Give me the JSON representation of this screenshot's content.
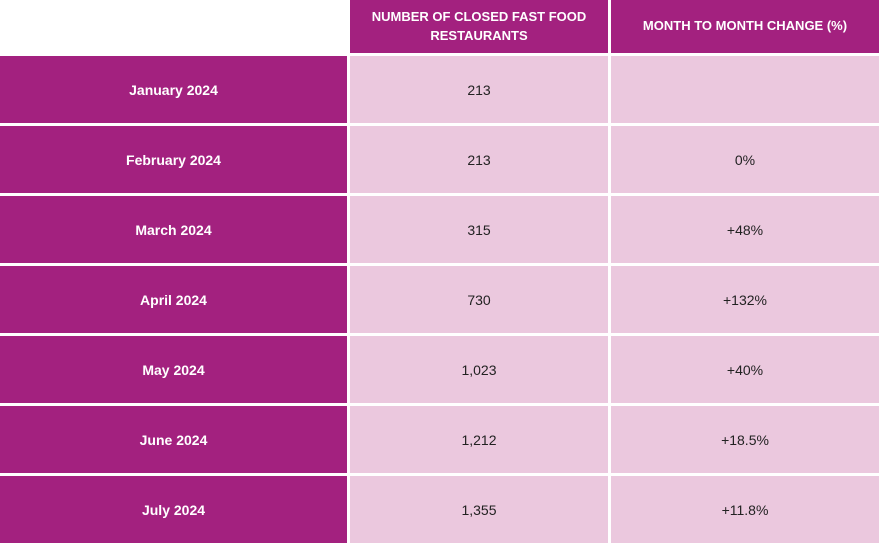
{
  "chart_data": {
    "type": "table",
    "columns": [
      "",
      "NUMBER OF CLOSED FAST FOOD RESTAURANTS",
      "MONTH TO MONTH CHANGE (%)"
    ],
    "rows": [
      {
        "month": "January 2024",
        "closed": "213",
        "change": ""
      },
      {
        "month": "February 2024",
        "closed": "213",
        "change": "0%"
      },
      {
        "month": "March 2024",
        "closed": "315",
        "change": "+48%"
      },
      {
        "month": "April 2024",
        "closed": "730",
        "change": "+132%"
      },
      {
        "month": "May 2024",
        "closed": "1,023",
        "change": "+40%"
      },
      {
        "month": "June 2024",
        "closed": "1,212",
        "change": "+18.5%"
      },
      {
        "month": "July 2024",
        "closed": "1,355",
        "change": "+11.8%"
      }
    ],
    "values": [
      213,
      213,
      315,
      730,
      1023,
      1212,
      1355
    ]
  },
  "colors": {
    "header_bg": "#a3217f",
    "cell_bg": "#ebc8de",
    "header_text": "#ffffff",
    "cell_text": "#222222"
  }
}
